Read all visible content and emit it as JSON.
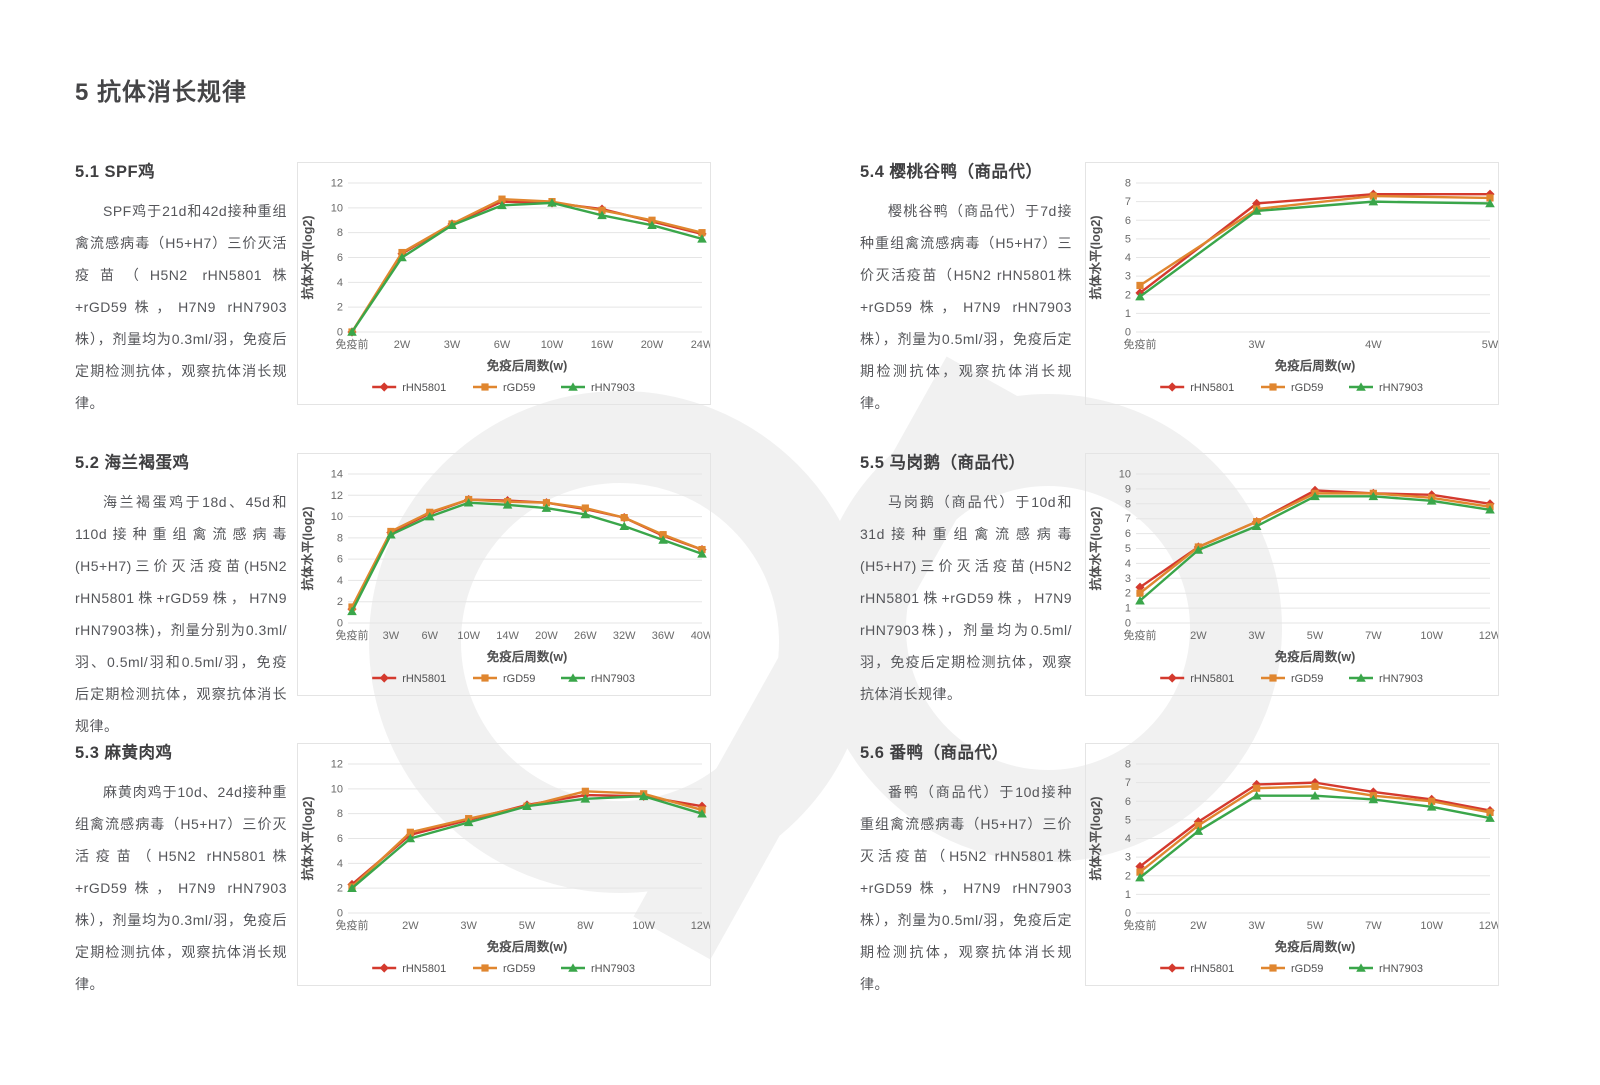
{
  "page": {
    "title": "5 抗体消长规律"
  },
  "colors": {
    "rHN5801": "#d43a2e",
    "rGD59": "#e0862f",
    "rHN7903": "#3aa64a",
    "grid": "#e5e5e5",
    "tick_text": "#6a6a6a",
    "axis_text": "#4f4f50",
    "watermark": "#f1f1f1"
  },
  "sections": [
    {
      "heading": "5.1 SPF鸡",
      "body": "SPF鸡于21d和42d接种重组禽流感病毒（H5+H7）三价灭活疫苗（H5N2 rHN5801株+rGD59株，H7N9 rHN7903株），剂量均为0.3ml/羽，免疫后定期检测抗体，观察抗体消长规律。"
    },
    {
      "heading": "5.2 海兰褐蛋鸡",
      "body": "海兰褐蛋鸡于18d、45d和110d接种重组禽流感病毒(H5+H7)三价灭活疫苗(H5N2 rHN5801株+rGD59株，H7N9 rHN7903株)，剂量分别为0.3ml/羽、0.5ml/羽和0.5ml/羽，免疫后定期检测抗体，观察抗体消长规律。"
    },
    {
      "heading": "5.3 麻黄肉鸡",
      "body": "麻黄肉鸡于10d、24d接种重组禽流感病毒（H5+H7）三价灭活疫苗（H5N2 rHN5801株+rGD59株，H7N9 rHN7903株），剂量均为0.3ml/羽，免疫后定期检测抗体，观察抗体消长规律。"
    },
    {
      "heading": "5.4 樱桃谷鸭（商品代）",
      "body": "樱桃谷鸭（商品代）于7d接种重组禽流感病毒（H5+H7）三价灭活疫苗（H5N2 rHN5801株+rGD59株，H7N9 rHN7903株），剂量为0.5ml/羽，免疫后定期检测抗体，观察抗体消长规律。"
    },
    {
      "heading": "5.5 马岗鹅（商品代）",
      "body": "马岗鹅（商品代）于10d和31d接种重组禽流感病毒(H5+H7)三价灭活疫苗(H5N2 rHN5801株+rGD59株，H7N9 rHN7903株)，剂量均为0.5ml/羽，免疫后定期检测抗体，观察抗体消长规律。"
    },
    {
      "heading": "5.6 番鸭（商品代）",
      "body": "番鸭（商品代）于10d接种重组禽流感病毒（H5+H7）三价灭活疫苗（H5N2 rHN5801株+rGD59株，H7N9 rHN7903株），剂量为0.5ml/羽，免疫后定期检测抗体，观察抗体消长规律。"
    }
  ],
  "chart_data": [
    {
      "type": "line",
      "title": "5.1 SPF鸡",
      "xlabel": "免疫后周数(w)",
      "ylabel": "抗体水平(log2)",
      "categories": [
        "免疫前",
        "2W",
        "3W",
        "6W",
        "10W",
        "16W",
        "20W",
        "24W"
      ],
      "ylim": [
        0,
        12
      ],
      "ytick_step": 2,
      "grid": true,
      "legend_position": "bottom",
      "series": [
        {
          "name": "rHN5801",
          "marker": "diamond",
          "values": [
            0,
            6.3,
            8.7,
            10.5,
            10.4,
            9.9,
            8.9,
            7.9
          ]
        },
        {
          "name": "rGD59",
          "marker": "square",
          "values": [
            0,
            6.4,
            8.7,
            10.7,
            10.5,
            9.8,
            9.0,
            8.0
          ]
        },
        {
          "name": "rHN7903",
          "marker": "triangle",
          "values": [
            0,
            6.0,
            8.6,
            10.2,
            10.4,
            9.4,
            8.6,
            7.5
          ]
        }
      ]
    },
    {
      "type": "line",
      "title": "5.2 海兰褐蛋鸡",
      "xlabel": "免疫后周数(w)",
      "ylabel": "抗体水平(log2)",
      "categories": [
        "免疫前",
        "3W",
        "6W",
        "10W",
        "14W",
        "20W",
        "26W",
        "32W",
        "36W",
        "40W"
      ],
      "ylim": [
        0,
        14
      ],
      "ytick_step": 2,
      "grid": true,
      "legend_position": "bottom",
      "series": [
        {
          "name": "rHN5801",
          "marker": "diamond",
          "values": [
            1.3,
            8.5,
            10.3,
            11.6,
            11.5,
            11.3,
            10.7,
            9.9,
            8.2,
            6.9
          ]
        },
        {
          "name": "rGD59",
          "marker": "square",
          "values": [
            1.5,
            8.6,
            10.4,
            11.6,
            11.4,
            11.3,
            10.8,
            9.9,
            8.3,
            6.9
          ]
        },
        {
          "name": "rHN7903",
          "marker": "triangle",
          "values": [
            1.1,
            8.3,
            10.0,
            11.3,
            11.1,
            10.8,
            10.2,
            9.1,
            7.8,
            6.5
          ]
        }
      ]
    },
    {
      "type": "line",
      "title": "5.3 麻黄肉鸡",
      "xlabel": "免疫后周数(w)",
      "ylabel": "抗体水平(log2)",
      "categories": [
        "免疫前",
        "2W",
        "3W",
        "5W",
        "8W",
        "10W",
        "12W"
      ],
      "ylim": [
        0,
        12
      ],
      "ytick_step": 2,
      "grid": true,
      "legend_position": "bottom",
      "series": [
        {
          "name": "rHN5801",
          "marker": "diamond",
          "values": [
            2.3,
            6.3,
            7.5,
            8.7,
            9.5,
            9.4,
            8.6
          ]
        },
        {
          "name": "rGD59",
          "marker": "square",
          "values": [
            2.1,
            6.5,
            7.6,
            8.6,
            9.8,
            9.6,
            8.3
          ]
        },
        {
          "name": "rHN7903",
          "marker": "triangle",
          "values": [
            2.0,
            6.0,
            7.3,
            8.6,
            9.2,
            9.4,
            8.0
          ]
        }
      ]
    },
    {
      "type": "line",
      "title": "5.4 樱桃谷鸭（商品代）",
      "xlabel": "免疫后周数(w)",
      "ylabel": "抗体水平(log2)",
      "categories": [
        "免疫前",
        "3W",
        "4W",
        "5W"
      ],
      "ylim": [
        0,
        8
      ],
      "ytick_step": 1,
      "grid": true,
      "legend_position": "bottom",
      "series": [
        {
          "name": "rHN5801",
          "marker": "diamond",
          "values": [
            2.1,
            6.9,
            7.4,
            7.4
          ]
        },
        {
          "name": "rGD59",
          "marker": "square",
          "values": [
            2.5,
            6.6,
            7.3,
            7.2
          ]
        },
        {
          "name": "rHN7903",
          "marker": "triangle",
          "values": [
            1.9,
            6.5,
            7.0,
            6.9
          ]
        }
      ]
    },
    {
      "type": "line",
      "title": "5.5 马岗鹅（商品代）",
      "xlabel": "免疫后周数(w)",
      "ylabel": "抗体水平(log2)",
      "categories": [
        "免疫前",
        "2W",
        "3W",
        "5W",
        "7W",
        "10W",
        "12W"
      ],
      "ylim": [
        0,
        10
      ],
      "ytick_step": 1,
      "grid": true,
      "legend_position": "bottom",
      "series": [
        {
          "name": "rHN5801",
          "marker": "diamond",
          "values": [
            2.4,
            5.1,
            6.8,
            8.9,
            8.7,
            8.6,
            8.0
          ]
        },
        {
          "name": "rGD59",
          "marker": "square",
          "values": [
            2.0,
            5.1,
            6.8,
            8.7,
            8.7,
            8.4,
            7.8
          ]
        },
        {
          "name": "rHN7903",
          "marker": "triangle",
          "values": [
            1.5,
            4.9,
            6.5,
            8.5,
            8.5,
            8.2,
            7.6
          ]
        }
      ]
    },
    {
      "type": "line",
      "title": "5.6 番鸭（商品代）",
      "xlabel": "免疫后周数(w)",
      "ylabel": "抗体水平(log2)",
      "categories": [
        "免疫前",
        "2W",
        "3W",
        "5W",
        "7W",
        "10W",
        "12W"
      ],
      "ylim": [
        0,
        8
      ],
      "ytick_step": 1,
      "grid": true,
      "legend_position": "bottom",
      "series": [
        {
          "name": "rHN5801",
          "marker": "diamond",
          "values": [
            2.5,
            4.9,
            6.9,
            7.0,
            6.5,
            6.1,
            5.5
          ]
        },
        {
          "name": "rGD59",
          "marker": "square",
          "values": [
            2.2,
            4.7,
            6.7,
            6.8,
            6.3,
            6.0,
            5.4
          ]
        },
        {
          "name": "rHN7903",
          "marker": "triangle",
          "values": [
            1.9,
            4.4,
            6.3,
            6.3,
            6.1,
            5.7,
            5.1
          ]
        }
      ]
    }
  ]
}
